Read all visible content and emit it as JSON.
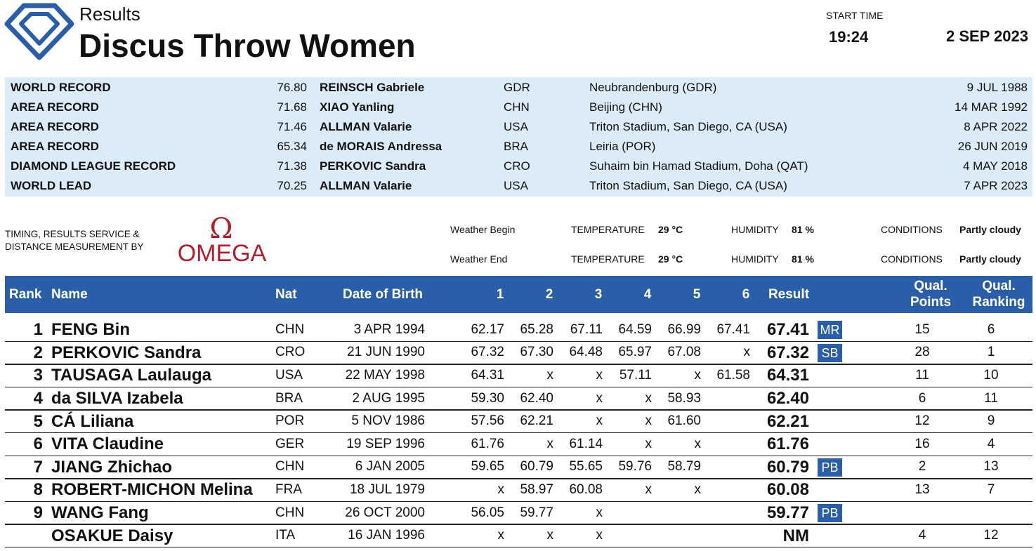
{
  "header": {
    "subtitle": "Results",
    "title": "Discus Throw Women",
    "start_time_label": "START TIME",
    "start_time": "19:24",
    "date": "2 SEP 2023"
  },
  "records": {
    "rows": [
      [
        "WORLD RECORD",
        "76.80",
        "REINSCH Gabriele",
        "GDR",
        "Neubrandenburg (GDR)",
        "9 JUL 1988"
      ],
      [
        "AREA RECORD",
        "71.68",
        "XIAO Yanling",
        "CHN",
        "Beijing (CHN)",
        "14 MAR 1992"
      ],
      [
        "AREA RECORD",
        "71.46",
        "ALLMAN Valarie",
        "USA",
        "Triton Stadium, San Diego, CA (USA)",
        "8 APR 2022"
      ],
      [
        "AREA RECORD",
        "65.34",
        "de MORAIS Andressa",
        "BRA",
        "Leiria (POR)",
        "26 JUN 2019"
      ],
      [
        "DIAMOND LEAGUE RECORD",
        "71.38",
        "PERKOVIC Sandra",
        "CRO",
        "Suhaim bin Hamad Stadium, Doha (QAT)",
        "4 MAY 2018"
      ],
      [
        "WORLD LEAD",
        "70.25",
        "ALLMAN Valarie",
        "USA",
        "Triton Stadium, San Diego, CA (USA)",
        "7 APR 2023"
      ]
    ]
  },
  "timing": {
    "label": [
      "TIMING, RESULTS SERVICE &",
      "DISTANCE MEASUREMENT BY"
    ],
    "logo_symbol": "Ω",
    "logo": "OMEGA"
  },
  "weather": {
    "rows": [
      [
        "Weather Begin",
        "TEMPERATURE",
        "29 °C",
        "HUMIDITY",
        "81 %",
        "CONDITIONS",
        "Partly cloudy"
      ],
      [
        "Weather End",
        "TEMPERATURE",
        "29 °C",
        "HUMIDITY",
        "81 %",
        "CONDITIONS",
        "Partly cloudy"
      ]
    ]
  },
  "results": {
    "columns": [
      "Rank",
      "Name",
      "Nat",
      "Date of Birth",
      "1",
      "2",
      "3",
      "4",
      "5",
      "6",
      "Result",
      "Qual. Points",
      "Qual. Ranking"
    ],
    "rows": [
      {
        "rank": "1",
        "name": "FENG Bin",
        "nat": "CHN",
        "dob": "3 APR 1994",
        "attempts": [
          "62.17",
          "65.28",
          "67.11",
          "64.59",
          "66.99",
          "67.41"
        ],
        "result": "67.41",
        "record": "MR",
        "points": "15",
        "ranking": "6"
      },
      {
        "rank": "2",
        "name": "PERKOVIC Sandra",
        "nat": "CRO",
        "dob": "21 JUN 1990",
        "attempts": [
          "67.32",
          "67.30",
          "64.48",
          "65.97",
          "67.08",
          "x"
        ],
        "result": "67.32",
        "record": "SB",
        "points": "28",
        "ranking": "1"
      },
      {
        "rank": "3",
        "name": "TAUSAGA Laulauga",
        "nat": "USA",
        "dob": "22 MAY 1998",
        "attempts": [
          "64.31",
          "x",
          "x",
          "57.11",
          "x",
          "61.58"
        ],
        "result": "64.31",
        "points": "11",
        "ranking": "10"
      },
      {
        "rank": "4",
        "name": "da SILVA Izabela",
        "nat": "BRA",
        "dob": "2 AUG 1995",
        "attempts": [
          "59.30",
          "62.40",
          "x",
          "x",
          "58.93",
          null
        ],
        "result": "62.40",
        "points": "6",
        "ranking": "11"
      },
      {
        "rank": "5",
        "name": "CÁ Liliana",
        "nat": "POR",
        "dob": "5 NOV 1986",
        "attempts": [
          "57.56",
          "62.21",
          "x",
          "x",
          "61.60",
          null
        ],
        "result": "62.21",
        "points": "12",
        "ranking": "9"
      },
      {
        "rank": "6",
        "name": "VITA Claudine",
        "nat": "GER",
        "dob": "19 SEP 1996",
        "attempts": [
          "61.76",
          "x",
          "61.14",
          "x",
          "x",
          null
        ],
        "result": "61.76",
        "points": "16",
        "ranking": "4"
      },
      {
        "rank": "7",
        "name": "JIANG Zhichao",
        "nat": "CHN",
        "dob": "6 JAN 2005",
        "attempts": [
          "59.65",
          "60.79",
          "55.65",
          "59.76",
          "58.79",
          null
        ],
        "result": "60.79",
        "record": "PB",
        "points": "2",
        "ranking": "13"
      },
      {
        "rank": "8",
        "name": "ROBERT-MICHON Melina",
        "nat": "FRA",
        "dob": "18 JUL 1979",
        "attempts": [
          "x",
          "58.97",
          "60.08",
          "x",
          "x",
          null
        ],
        "result": "60.08",
        "points": "13",
        "ranking": "7"
      },
      {
        "rank": "9",
        "name": "WANG Fang",
        "nat": "CHN",
        "dob": "26 OCT 2000",
        "attempts": [
          "56.05",
          "59.77",
          "x",
          null,
          null,
          null
        ],
        "result": "59.77",
        "record": "PB",
        "points": null,
        "ranking": null
      },
      {
        "rank": null,
        "name": "OSAKUE Daisy",
        "nat": "ITA",
        "dob": "16 JAN 1996",
        "attempts": [
          "x",
          "x",
          "x",
          null,
          null,
          null
        ],
        "result": "NM",
        "points": "4",
        "ranking": "12"
      }
    ]
  }
}
